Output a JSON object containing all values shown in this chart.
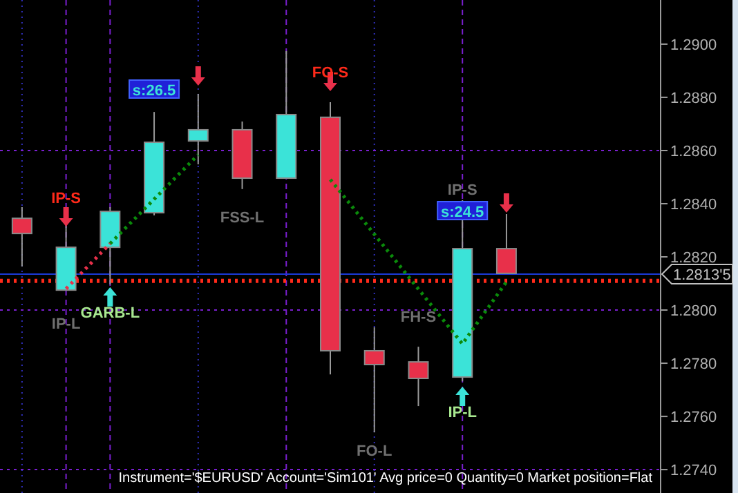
{
  "chart_data": {
    "type": "candlestick",
    "categories": [
      null,
      null,
      null,
      null,
      null,
      null,
      null,
      null,
      null,
      null,
      null,
      null,
      null,
      null,
      null
    ],
    "ohlc": [
      [
        1.28345,
        1.28387,
        1.28164,
        1.28288
      ],
      [
        1.28075,
        1.2832,
        1.28075,
        1.28236
      ],
      [
        1.28236,
        1.28387,
        1.28096,
        1.28371
      ],
      [
        1.28366,
        1.28745,
        1.28356,
        1.28631
      ],
      [
        1.28636,
        1.28813,
        1.28548,
        1.28678
      ],
      [
        1.28678,
        1.28709,
        1.28455,
        1.28496
      ],
      [
        1.28496,
        1.28974,
        1.28496,
        1.28735
      ],
      [
        1.28725,
        1.28782,
        1.27758,
        1.27847
      ],
      [
        1.27847,
        1.27935,
        1.2754,
        1.27795
      ],
      [
        1.27805,
        1.27862,
        1.27639,
        1.27743
      ],
      [
        1.27748,
        1.28413,
        1.27732,
        1.28231
      ],
      [
        1.28231,
        1.28361,
        1.28138,
        1.28138
      ],
      null,
      null,
      null
    ],
    "colors": [
      "#e8304a",
      "#3be3d8",
      "#3be3d8",
      "#3be3d8",
      "#3be3d8",
      "#e8304a",
      "#3be3d8",
      "#e8304a",
      "#e8304a",
      "#e8304a",
      "#3be3d8",
      "#e8304a",
      null,
      null,
      null
    ],
    "series": [
      {
        "type": "line",
        "color": "#e8304a",
        "line_style": "dotted",
        "values": [
          null,
          1.2808,
          1.2825,
          null,
          null,
          null,
          null,
          null,
          null,
          null,
          null,
          null,
          null,
          null,
          null
        ]
      },
      {
        "type": "line",
        "color": "#0a8a0a",
        "line_style": "dotted",
        "values": [
          null,
          null,
          1.2825,
          null,
          1.28584,
          null,
          null,
          null,
          null,
          null,
          null,
          null,
          null,
          null,
          null
        ]
      },
      {
        "type": "line",
        "color": "#0a8a0a",
        "line_style": "dotted",
        "values": [
          null,
          null,
          null,
          null,
          null,
          null,
          null,
          1.28491,
          null,
          null,
          1.27873,
          1.28106,
          null,
          null,
          null
        ]
      }
    ],
    "ylim": [
      1.27312,
      1.29166
    ],
    "yticks": [
      {
        "value": 1.274,
        "label": "1.2740"
      },
      {
        "value": 1.276,
        "label": "1.2760"
      },
      {
        "value": 1.278,
        "label": "1.2780"
      },
      {
        "value": 1.28,
        "label": "1.2800"
      },
      {
        "value": 1.282,
        "label": "1.2820"
      },
      {
        "value": 1.284,
        "label": "1.2840"
      },
      {
        "value": 1.286,
        "label": "1.2860"
      },
      {
        "value": 1.288,
        "label": "1.2880"
      },
      {
        "value": 1.29,
        "label": "1.2900"
      }
    ],
    "ref_lines": [
      {
        "axis": "y",
        "value": 1.286,
        "color": "#7a1fd0",
        "line_style": "dotted"
      },
      {
        "axis": "y",
        "value": 1.28,
        "color": "#7a1fd0",
        "line_style": "dotted"
      },
      {
        "axis": "y",
        "value": 1.274,
        "color": "#7a1fd0",
        "line_style": "dotted"
      },
      {
        "axis": "y",
        "value": 1.28135,
        "label": "1.2813'5",
        "color": "#1a3ad8",
        "line_style": "solid"
      },
      {
        "axis": "y",
        "value": 1.2811,
        "color": "#ff2a1a",
        "line_style": "dotted"
      }
    ],
    "annotations": [
      "IP-S",
      "IP-L",
      "GARB-L",
      "s:26.5",
      "FSS-L",
      "FO-S",
      "IP-S",
      "s:24.5",
      "FH-S",
      "IP-L",
      "FO-L",
      "Instrument='$EURUSD' Account='Sim101' Avg price=0 Quantity=0 Market position=Flat"
    ],
    "tick_labels": "y",
    "grid": "x"
  }
}
